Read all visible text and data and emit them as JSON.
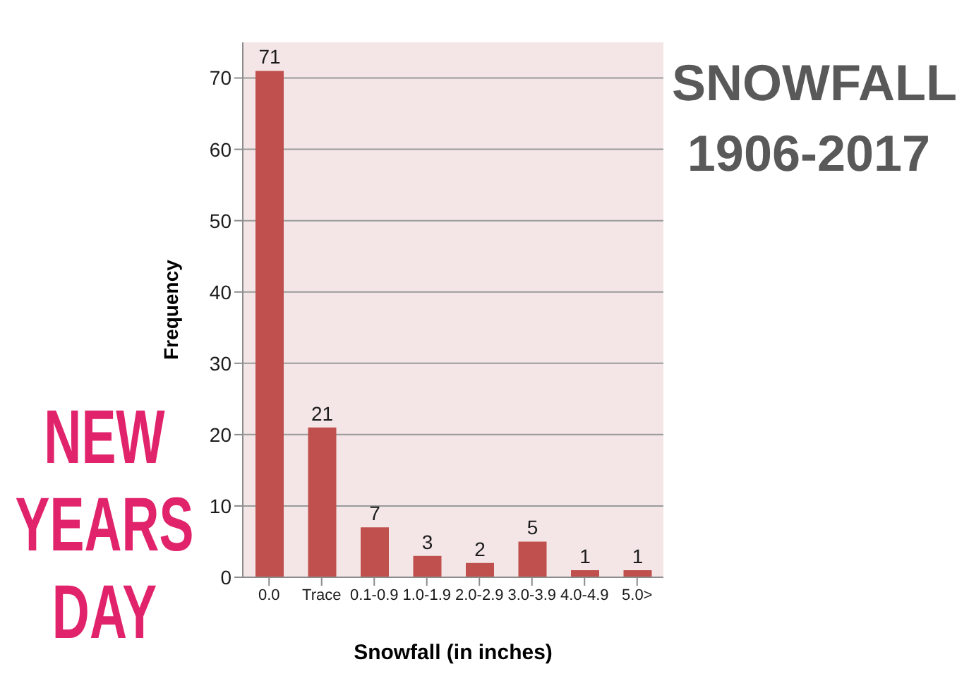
{
  "chart_data": {
    "type": "bar",
    "title": "SNOWFALL 1906-2017",
    "annotations": [
      "NEW YEARS DAY"
    ],
    "xlabel": "Snowfall (in inches)",
    "ylabel": "Frequency",
    "categories": [
      "0.0",
      "Trace",
      "0.1-0.9",
      "1.0-1.9",
      "2.0-2.9",
      "3.0-3.9",
      "4.0-4.9",
      "5.0>"
    ],
    "values": [
      71,
      21,
      7,
      3,
      2,
      5,
      1,
      1
    ],
    "color": "#c0504d",
    "ylim": [
      0,
      75
    ],
    "yticks": [
      0,
      10,
      20,
      30,
      40,
      50,
      60,
      70
    ],
    "grid": "y",
    "data_labels": true
  }
}
